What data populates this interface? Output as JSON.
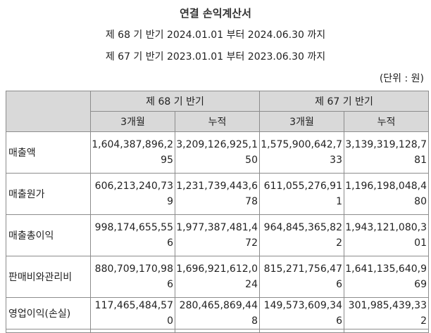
{
  "title": "연결 손익계산서",
  "periods": [
    "제 68 기 반기  2024.01.01 부터 2024.06.30 까지",
    "제 67 기 반기  2023.01.01 부터 2023.06.30 까지"
  ],
  "unit": "(단위 : 원)",
  "table": {
    "group_headers": [
      "제 68 기 반기",
      "제 67 기 반기"
    ],
    "sub_headers": [
      "3개월",
      "누적",
      "3개월",
      "누적"
    ],
    "rows": [
      {
        "label": "매출액",
        "values": [
          "1,604,387,896,295",
          "3,209,126,925,150",
          "1,575,900,642,733",
          "3,139,319,128,781"
        ]
      },
      {
        "label": "매출원가",
        "values": [
          "606,213,240,739",
          "1,231,739,443,678",
          "611,055,276,911",
          "1,196,198,048,480"
        ]
      },
      {
        "label": "매출총이익",
        "values": [
          "998,174,655,556",
          "1,977,387,481,472",
          "964,845,365,822",
          "1,943,121,080,301"
        ]
      },
      {
        "label": "판매비와관리비",
        "values": [
          "880,709,170,986",
          "1,696,921,612,024",
          "815,271,756,476",
          "1,641,135,640,969"
        ]
      },
      {
        "label": "영업이익(손실)",
        "values": [
          "117,465,484,570",
          "280,465,869,448",
          "149,573,609,346",
          "301,985,439,332"
        ]
      }
    ]
  }
}
